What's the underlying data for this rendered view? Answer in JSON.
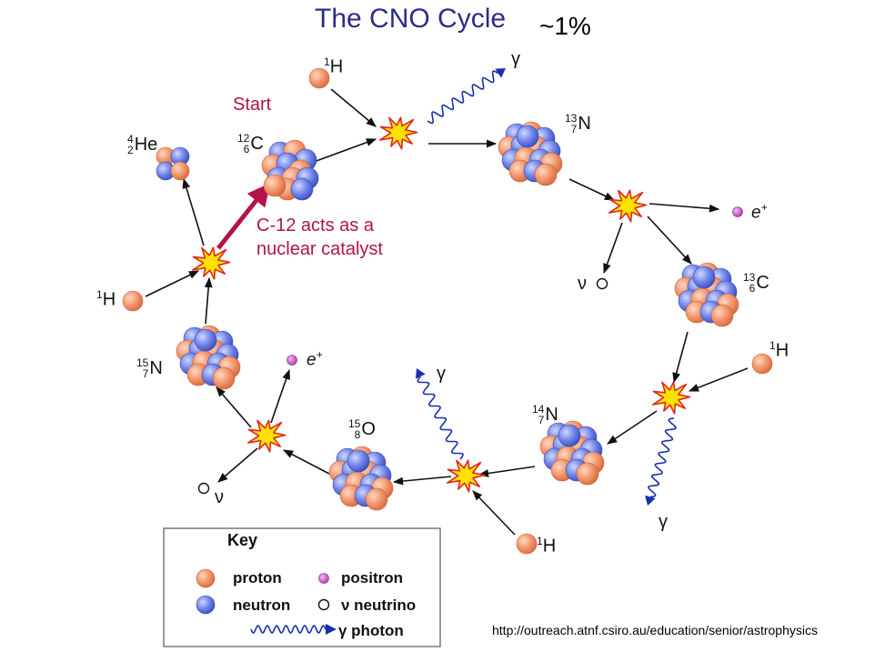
{
  "title": "The CNO Cycle",
  "annotation": "~1%",
  "start_label": "Start",
  "catalyst_note": [
    "C-12 acts as a",
    "nuclear catalyst"
  ],
  "isotopes": {
    "he4": {
      "mass": "4",
      "atomic": "2",
      "symbol": "He"
    },
    "c12": {
      "mass": "12",
      "atomic": "6",
      "symbol": "C"
    },
    "n13": {
      "mass": "13",
      "atomic": "7",
      "symbol": "N"
    },
    "c13": {
      "mass": "13",
      "atomic": "6",
      "symbol": "C"
    },
    "n14": {
      "mass": "14",
      "atomic": "7",
      "symbol": "N"
    },
    "o15": {
      "mass": "15",
      "atomic": "8",
      "symbol": "O"
    },
    "n15": {
      "mass": "15",
      "atomic": "7",
      "symbol": "N"
    }
  },
  "hydrogen": {
    "mass": "1",
    "symbol": "H"
  },
  "symbols": {
    "positron": "e",
    "positron_charge": "+",
    "neutrino": "ν",
    "gamma": "γ"
  },
  "key": {
    "title": "Key",
    "proton": "proton",
    "neutron": "neutron",
    "positron": "positron",
    "neutrino": "ν neutrino",
    "photon": "γ photon"
  },
  "source_url": "http://outreach.atnf.csiro.au/education/senior/astrophysics",
  "colors": {
    "proton": "#f2956a",
    "neutron": "#6f83e8",
    "positron": "#c44fc0",
    "catalyst": "#b3124a",
    "title": "#2b2b8c",
    "photon": "#1a2fb0",
    "flash": "#ffe100",
    "flash_edge": "#e0261b"
  }
}
